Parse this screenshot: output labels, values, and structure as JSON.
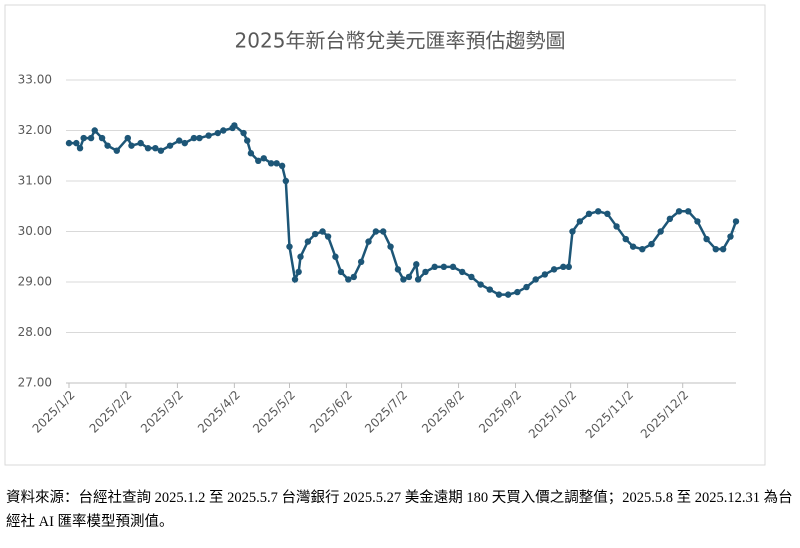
{
  "chart_data": {
    "type": "line",
    "title": "2025年新台幣兌美元匯率預估趨勢圖",
    "x": [
      "2025/1/2",
      "2025/1/6",
      "2025/1/8",
      "2025/1/10",
      "2025/1/14",
      "2025/1/16",
      "2025/1/20",
      "2025/1/23",
      "2025/1/28",
      "2025/2/3",
      "2025/2/5",
      "2025/2/10",
      "2025/2/14",
      "2025/2/18",
      "2025/2/21",
      "2025/2/26",
      "2025/3/3",
      "2025/3/6",
      "2025/3/11",
      "2025/3/14",
      "2025/3/19",
      "2025/3/24",
      "2025/3/27",
      "2025/4/1",
      "2025/4/2",
      "2025/4/7",
      "2025/4/9",
      "2025/4/11",
      "2025/4/15",
      "2025/4/18",
      "2025/4/22",
      "2025/4/25",
      "2025/4/28",
      "2025/4/30",
      "2025/5/2",
      "2025/5/5",
      "2025/5/7",
      "2025/5/8",
      "2025/5/12",
      "2025/5/16",
      "2025/5/20",
      "2025/5/23",
      "2025/5/27",
      "2025/5/30",
      "2025/6/3",
      "2025/6/6",
      "2025/6/10",
      "2025/6/14",
      "2025/6/18",
      "2025/6/22",
      "2025/6/26",
      "2025/6/30",
      "2025/7/3",
      "2025/7/6",
      "2025/7/10",
      "2025/7/11",
      "2025/7/15",
      "2025/7/20",
      "2025/7/25",
      "2025/7/30",
      "2025/8/4",
      "2025/8/9",
      "2025/8/14",
      "2025/8/19",
      "2025/8/24",
      "2025/8/29",
      "2025/9/3",
      "2025/9/8",
      "2025/9/13",
      "2025/9/18",
      "2025/9/23",
      "2025/9/28",
      "2025/10/1",
      "2025/10/3",
      "2025/10/7",
      "2025/10/12",
      "2025/10/17",
      "2025/10/22",
      "2025/10/27",
      "2025/11/1",
      "2025/11/5",
      "2025/11/10",
      "2025/11/15",
      "2025/11/20",
      "2025/11/25",
      "2025/11/30",
      "2025/12/5",
      "2025/12/10",
      "2025/12/15",
      "2025/12/20",
      "2025/12/24",
      "2025/12/28",
      "2025/12/31"
    ],
    "series": [
      {
        "color": "#1d5677",
        "values": [
          31.75,
          31.75,
          31.65,
          31.85,
          31.85,
          32.0,
          31.85,
          31.7,
          31.6,
          31.85,
          31.7,
          31.75,
          31.65,
          31.65,
          31.6,
          31.7,
          31.8,
          31.75,
          31.85,
          31.85,
          31.9,
          31.95,
          32.0,
          32.05,
          32.1,
          31.95,
          31.8,
          31.55,
          31.4,
          31.45,
          31.35,
          31.35,
          31.3,
          31.0,
          29.7,
          29.05,
          29.2,
          29.5,
          29.8,
          29.95,
          30.0,
          29.9,
          29.5,
          29.2,
          29.05,
          29.1,
          29.4,
          29.8,
          30.0,
          30.0,
          29.7,
          29.25,
          29.05,
          29.1,
          29.35,
          29.05,
          29.2,
          29.3,
          29.3,
          29.3,
          29.2,
          29.1,
          28.95,
          28.85,
          28.75,
          28.75,
          28.8,
          28.9,
          29.05,
          29.15,
          29.25,
          29.3,
          29.3,
          30.0,
          30.2,
          30.35,
          30.4,
          30.35,
          30.1,
          29.85,
          29.7,
          29.65,
          29.75,
          30.0,
          30.25,
          30.4,
          30.4,
          30.2,
          29.85,
          29.65,
          29.65,
          29.9,
          30.2
        ]
      }
    ],
    "ylim": [
      27,
      33
    ],
    "yticks": [
      {
        "value": 27,
        "label": "27.00"
      },
      {
        "value": 28,
        "label": "28.00"
      },
      {
        "value": 29,
        "label": "29.00"
      },
      {
        "value": 30,
        "label": "30.00"
      },
      {
        "value": 31,
        "label": "31.00"
      },
      {
        "value": 32,
        "label": "32.00"
      },
      {
        "value": 33,
        "label": "33.00"
      }
    ],
    "xlim": [
      "2025/1/2",
      "2025/12/31"
    ],
    "xticks": [
      "2025/1/2",
      "2025/2/2",
      "2025/3/2",
      "2025/4/2",
      "2025/5/2",
      "2025/6/2",
      "2025/7/2",
      "2025/8/2",
      "2025/9/2",
      "2025/10/2",
      "2025/11/2",
      "2025/12/2"
    ],
    "grid": true
  },
  "caption": "資料來源：台經社查詢 2025.1.2 至 2025.5.7 台灣銀行 2025.5.27 美金遠期 180 天買入價之調整值；2025.5.8 至 2025.12.31 為台經社 AI 匯率模型預測值。"
}
